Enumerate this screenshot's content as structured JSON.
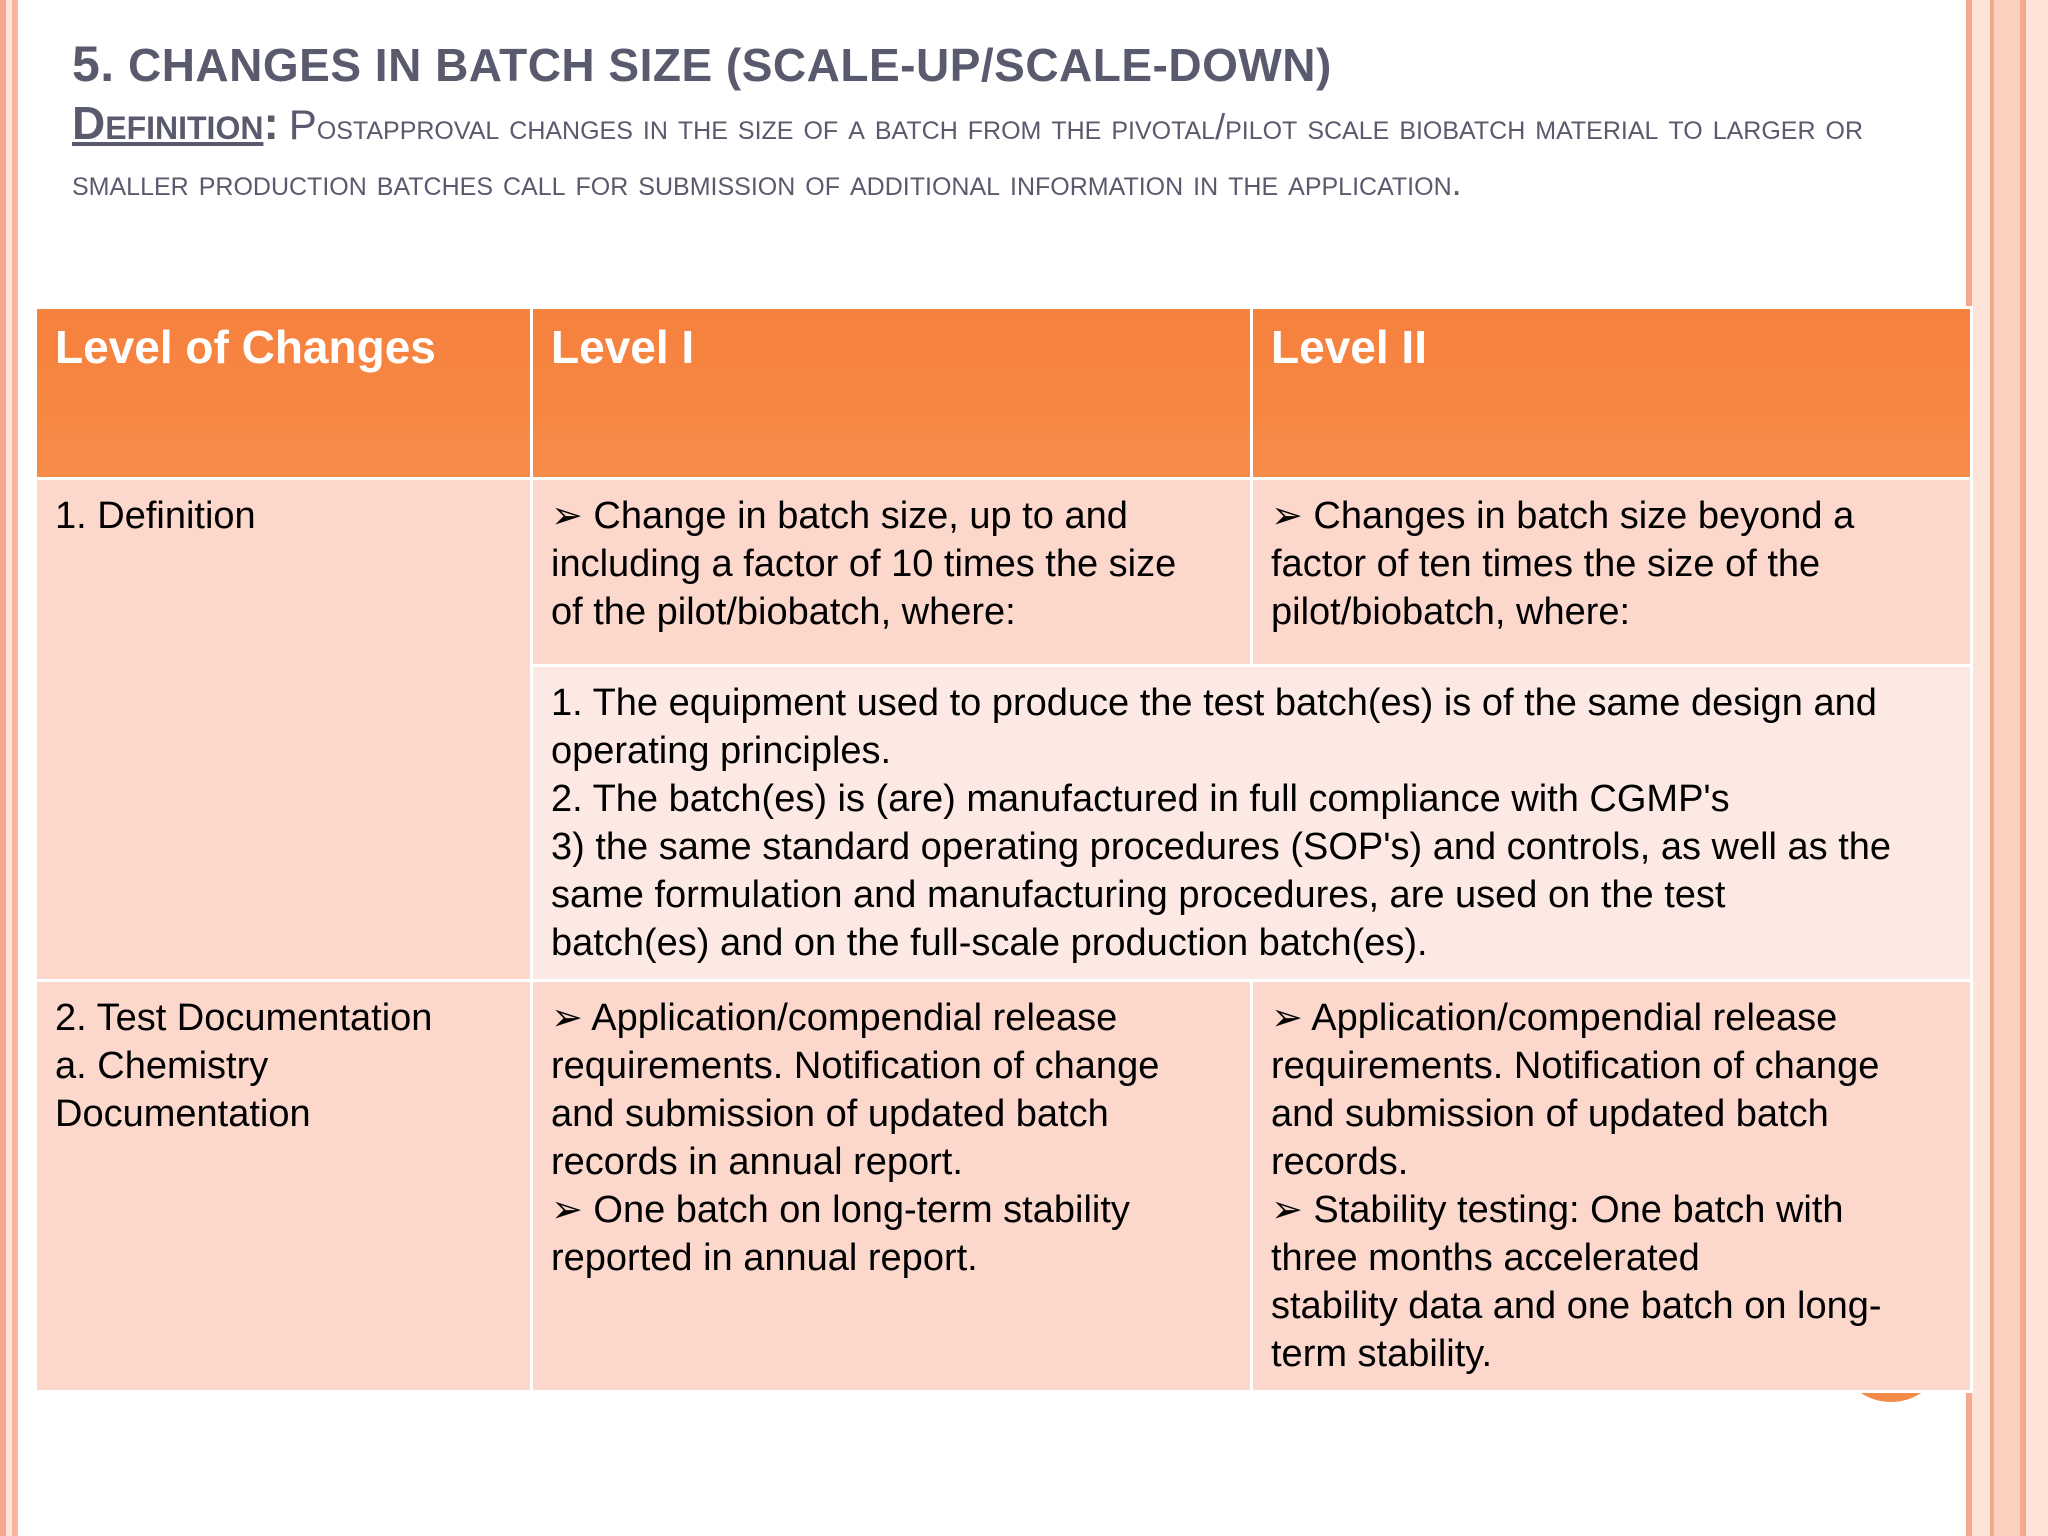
{
  "heading": {
    "number": "5.",
    "title": "Changes in batch size (Scale-Up/Scale-Down)",
    "definition_label": "Definition",
    "definition_colon": ":",
    "definition_first_letter": "P",
    "definition_text": "ostapproval changes in the size of a batch from the pivotal/pilot scale biobatch material to larger or smaller production batches call for submission of additional information in the application."
  },
  "table": {
    "headers": [
      "Level of Changes",
      "Level I",
      "Level II"
    ],
    "rows": {
      "definition": {
        "label": "1. Definition",
        "level1_lines": [
          "➢ Change in batch size, up to and",
          "including a factor of 10 times the size",
          "of the pilot/biobatch, where:"
        ],
        "level2_lines": [
          "➢ Changes in batch size beyond a",
          "factor of ten times the size of the",
          "pilot/biobatch, where:"
        ],
        "common_lines": [
          "1. The equipment used to produce the test batch(es) is of the same design and",
          "operating principles.",
          "2. The batch(es) is (are) manufactured in full compliance with CGMP's",
          "3) the same standard operating procedures (SOP's) and controls, as well as the",
          "same formulation and manufacturing procedures, are used on the test",
          "batch(es) and on the full-scale production batch(es)."
        ]
      },
      "test_documentation": {
        "label_lines": [
          "2. Test Documentation",
          "a. Chemistry",
          "Documentation"
        ],
        "level1_lines": [
          "➢ Application/compendial release",
          "requirements. Notification of change",
          "and submission of updated batch",
          "records in annual report.",
          "➢  One batch on long-term stability",
          "reported in annual report."
        ],
        "level2_lines": [
          "➢  Application/compendial release",
          "requirements. Notification of change",
          "and submission of updated batch",
          "records.",
          "➢  Stability testing: One batch with",
          "three months accelerated",
          "stability data and one batch on long-",
          "term stability."
        ]
      }
    }
  }
}
